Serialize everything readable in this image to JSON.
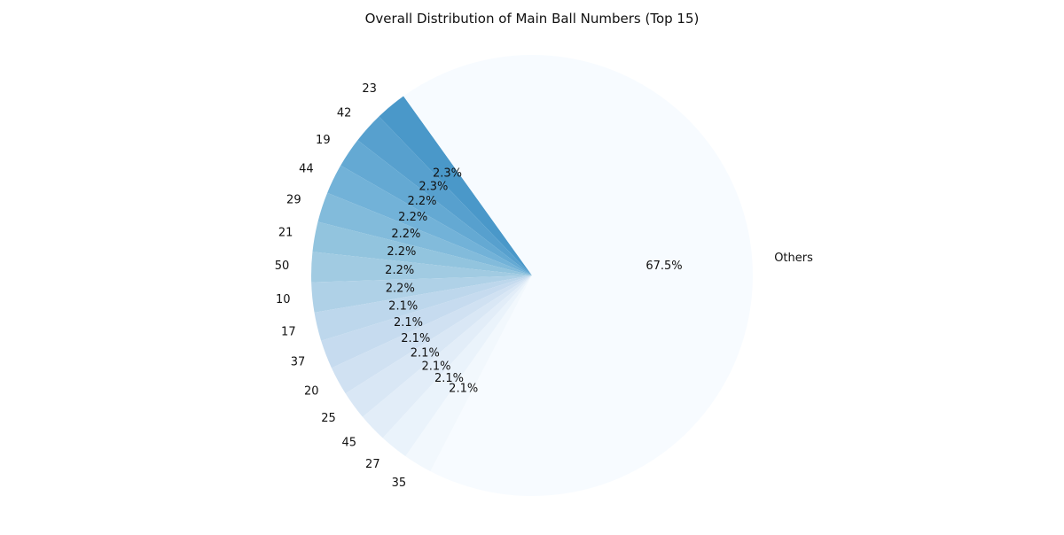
{
  "chart_data": {
    "type": "pie",
    "title": "Overall Distribution of Main Ball Numbers (Top 15)",
    "start_angle_deg": 125.6,
    "direction": "counterclockwise",
    "slices": [
      {
        "label": "23",
        "percent": 2.3,
        "pct_label": "2.3%",
        "color": "#4a98c9"
      },
      {
        "label": "42",
        "percent": 2.3,
        "pct_label": "2.3%",
        "color": "#57a0ce"
      },
      {
        "label": "19",
        "percent": 2.2,
        "pct_label": "2.2%",
        "color": "#64a9d3"
      },
      {
        "label": "44",
        "percent": 2.2,
        "pct_label": "2.2%",
        "color": "#72b2d8"
      },
      {
        "label": "29",
        "percent": 2.2,
        "pct_label": "2.2%",
        "color": "#82bbdb"
      },
      {
        "label": "21",
        "percent": 2.2,
        "pct_label": "2.2%",
        "color": "#92c4de"
      },
      {
        "label": "50",
        "percent": 2.2,
        "pct_label": "2.2%",
        "color": "#a1cbe2"
      },
      {
        "label": "10",
        "percent": 2.2,
        "pct_label": "2.2%",
        "color": "#afd1e7"
      },
      {
        "label": "17",
        "percent": 2.1,
        "pct_label": "2.1%",
        "color": "#bdd7ec"
      },
      {
        "label": "37",
        "percent": 2.1,
        "pct_label": "2.1%",
        "color": "#c6dbef"
      },
      {
        "label": "20",
        "percent": 2.1,
        "pct_label": "2.1%",
        "color": "#d0e1f2"
      },
      {
        "label": "25",
        "percent": 2.1,
        "pct_label": "2.1%",
        "color": "#d9e7f5"
      },
      {
        "label": "45",
        "percent": 2.1,
        "pct_label": "2.1%",
        "color": "#e2edf8"
      },
      {
        "label": "27",
        "percent": 2.1,
        "pct_label": "2.1%",
        "color": "#eaf3fb"
      },
      {
        "label": "35",
        "percent": 2.1,
        "pct_label": "2.1%",
        "color": "#f2f8fd"
      },
      {
        "label": "Others",
        "percent": 67.5,
        "pct_label": "67.5%",
        "color": "#f7fbff"
      }
    ]
  }
}
